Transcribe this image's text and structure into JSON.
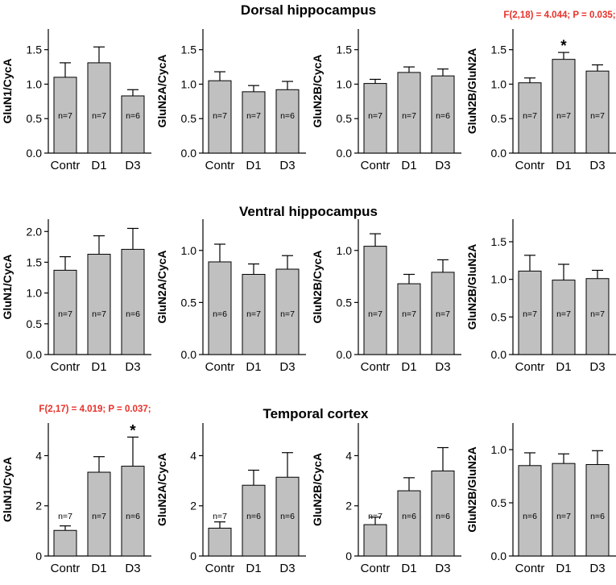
{
  "figure": {
    "sections": [
      {
        "title": "Dorsal hippocampus"
      },
      {
        "title": "Ventral hippocampus"
      },
      {
        "title": "Temporal cortex"
      }
    ]
  },
  "chart_data": [
    {
      "type": "bar",
      "section": "Dorsal hippocampus",
      "ylabel": "GluN1/CycA",
      "categories": [
        "Contr",
        "D1",
        "D3"
      ],
      "values": [
        1.1,
        1.31,
        0.83
      ],
      "errors": [
        0.21,
        0.23,
        0.09
      ],
      "n": [
        "n=7",
        "n=7",
        "n=6"
      ],
      "ylim": [
        0,
        1.8
      ],
      "yticks": [
        0.0,
        0.5,
        1.0,
        1.5
      ],
      "ytick_labels": [
        "0.0",
        "0.5",
        "1.0",
        "1.5"
      ],
      "annotation": "",
      "significant": []
    },
    {
      "type": "bar",
      "section": "Dorsal hippocampus",
      "ylabel": "GluN2A/CycA",
      "categories": [
        "Contr",
        "D1",
        "D3"
      ],
      "values": [
        1.05,
        0.89,
        0.92
      ],
      "errors": [
        0.13,
        0.09,
        0.12
      ],
      "n": [
        "n=7",
        "n=7",
        "n=6"
      ],
      "ylim": [
        0,
        1.8
      ],
      "yticks": [
        0.0,
        0.5,
        1.0,
        1.5
      ],
      "ytick_labels": [
        "0.0",
        "0.5",
        "1.0",
        "1.5"
      ],
      "annotation": "",
      "significant": []
    },
    {
      "type": "bar",
      "section": "Dorsal hippocampus",
      "ylabel": "GluN2B/CycA",
      "categories": [
        "Contr",
        "D1",
        "D3"
      ],
      "values": [
        1.01,
        1.17,
        1.12
      ],
      "errors": [
        0.06,
        0.08,
        0.1
      ],
      "n": [
        "n=7",
        "n=7",
        "n=6"
      ],
      "ylim": [
        0,
        1.8
      ],
      "yticks": [
        0.0,
        0.5,
        1.0,
        1.5
      ],
      "ytick_labels": [
        "0.0",
        "0.5",
        "1.0",
        "1.5"
      ],
      "annotation": "",
      "significant": []
    },
    {
      "type": "bar",
      "section": "Dorsal hippocampus",
      "ylabel": "GluN2B/GluN2A",
      "categories": [
        "Contr",
        "D1",
        "D3"
      ],
      "values": [
        1.02,
        1.36,
        1.19
      ],
      "errors": [
        0.07,
        0.1,
        0.09
      ],
      "n": [
        "n=7",
        "n=7",
        "n=7"
      ],
      "ylim": [
        0,
        1.8
      ],
      "yticks": [
        0.0,
        0.5,
        1.0,
        1.5
      ],
      "ytick_labels": [
        "0.0",
        "0.5",
        "1.0",
        "1.5"
      ],
      "annotation": "F(2,18) = 4.044; P = 0.035;",
      "significant": [
        1
      ]
    },
    {
      "type": "bar",
      "section": "Ventral hippocampus",
      "ylabel": "GluN1/CycA",
      "categories": [
        "Contr",
        "D1",
        "D3"
      ],
      "values": [
        1.37,
        1.63,
        1.71
      ],
      "errors": [
        0.22,
        0.3,
        0.34
      ],
      "n": [
        "n=7",
        "n=7",
        "n=6"
      ],
      "ylim": [
        0,
        2.2
      ],
      "yticks": [
        0.0,
        0.5,
        1.0,
        1.5,
        2.0
      ],
      "ytick_labels": [
        "0.0",
        "0.5",
        "1.0",
        "1.5",
        "2.0"
      ],
      "annotation": "",
      "significant": []
    },
    {
      "type": "bar",
      "section": "Ventral hippocampus",
      "ylabel": "GluN2A/CycA",
      "categories": [
        "Contr",
        "D1",
        "D3"
      ],
      "values": [
        0.89,
        0.77,
        0.82
      ],
      "errors": [
        0.17,
        0.1,
        0.13
      ],
      "n": [
        "n=6",
        "n=7",
        "n=7"
      ],
      "ylim": [
        0,
        1.3
      ],
      "yticks": [
        0.0,
        0.5,
        1.0
      ],
      "ytick_labels": [
        "0.0",
        "0.5",
        "1.0"
      ],
      "annotation": "",
      "significant": []
    },
    {
      "type": "bar",
      "section": "Ventral hippocampus",
      "ylabel": "GluN2B/CycA",
      "categories": [
        "Contr",
        "D1",
        "D3"
      ],
      "values": [
        1.04,
        0.68,
        0.79
      ],
      "errors": [
        0.12,
        0.09,
        0.12
      ],
      "n": [
        "n=7",
        "n=7",
        "n=7"
      ],
      "ylim": [
        0,
        1.3
      ],
      "yticks": [
        0.0,
        0.5,
        1.0
      ],
      "ytick_labels": [
        "0.0",
        "0.5",
        "1.0"
      ],
      "annotation": "",
      "significant": []
    },
    {
      "type": "bar",
      "section": "Ventral hippocampus",
      "ylabel": "GluN2B/GluN2A",
      "categories": [
        "Contr",
        "D1",
        "D3"
      ],
      "values": [
        1.11,
        0.99,
        1.01
      ],
      "errors": [
        0.21,
        0.21,
        0.11
      ],
      "n": [
        "n=7",
        "n=7",
        "n=7"
      ],
      "ylim": [
        0,
        1.8
      ],
      "yticks": [
        0.0,
        0.5,
        1.0,
        1.5
      ],
      "ytick_labels": [
        "0.0",
        "0.5",
        "1.0",
        "1.5"
      ],
      "annotation": "",
      "significant": []
    },
    {
      "type": "bar",
      "section": "Temporal cortex",
      "ylabel": "GluN1/CycA",
      "categories": [
        "Contr",
        "D1",
        "D3"
      ],
      "values": [
        1.02,
        3.34,
        3.58
      ],
      "errors": [
        0.18,
        0.62,
        1.16
      ],
      "n": [
        "n=7",
        "n=7",
        "n=6"
      ],
      "ylim": [
        0,
        5.3
      ],
      "yticks": [
        0,
        2,
        4
      ],
      "ytick_labels": [
        "0",
        "2",
        "4"
      ],
      "annotation": "F(2,17) = 4.019; P = 0.037;",
      "significant": [
        2
      ]
    },
    {
      "type": "bar",
      "section": "Temporal cortex",
      "ylabel": "GluN2A/CycA",
      "categories": [
        "Contr",
        "D1",
        "D3"
      ],
      "values": [
        1.11,
        2.82,
        3.14
      ],
      "errors": [
        0.25,
        0.6,
        0.98
      ],
      "n": [
        "n=7",
        "n=6",
        "n=6"
      ],
      "ylim": [
        0,
        5.3
      ],
      "yticks": [
        0,
        2,
        4
      ],
      "ytick_labels": [
        "0",
        "2",
        "4"
      ],
      "annotation": "",
      "significant": []
    },
    {
      "type": "bar",
      "section": "Temporal cortex",
      "ylabel": "GluN2B/CycA",
      "categories": [
        "Contr",
        "D1",
        "D3"
      ],
      "values": [
        1.25,
        2.6,
        3.39
      ],
      "errors": [
        0.3,
        0.52,
        0.93
      ],
      "n": [
        "n=7",
        "n=6",
        "n=6"
      ],
      "ylim": [
        0,
        5.3
      ],
      "yticks": [
        0,
        2,
        4
      ],
      "ytick_labels": [
        "0",
        "2",
        "4"
      ],
      "annotation": "",
      "significant": []
    },
    {
      "type": "bar",
      "section": "Temporal cortex",
      "ylabel": "GluN2B/GluN2A",
      "categories": [
        "Contr",
        "D1",
        "D3"
      ],
      "values": [
        0.85,
        0.87,
        0.86
      ],
      "errors": [
        0.12,
        0.09,
        0.13
      ],
      "n": [
        "n=6",
        "n=7",
        "n=6"
      ],
      "ylim": [
        0,
        1.25
      ],
      "yticks": [
        0.0,
        0.5,
        1.0
      ],
      "ytick_labels": [
        "0.0",
        "0.5",
        "1.0"
      ],
      "annotation": "",
      "significant": []
    }
  ]
}
